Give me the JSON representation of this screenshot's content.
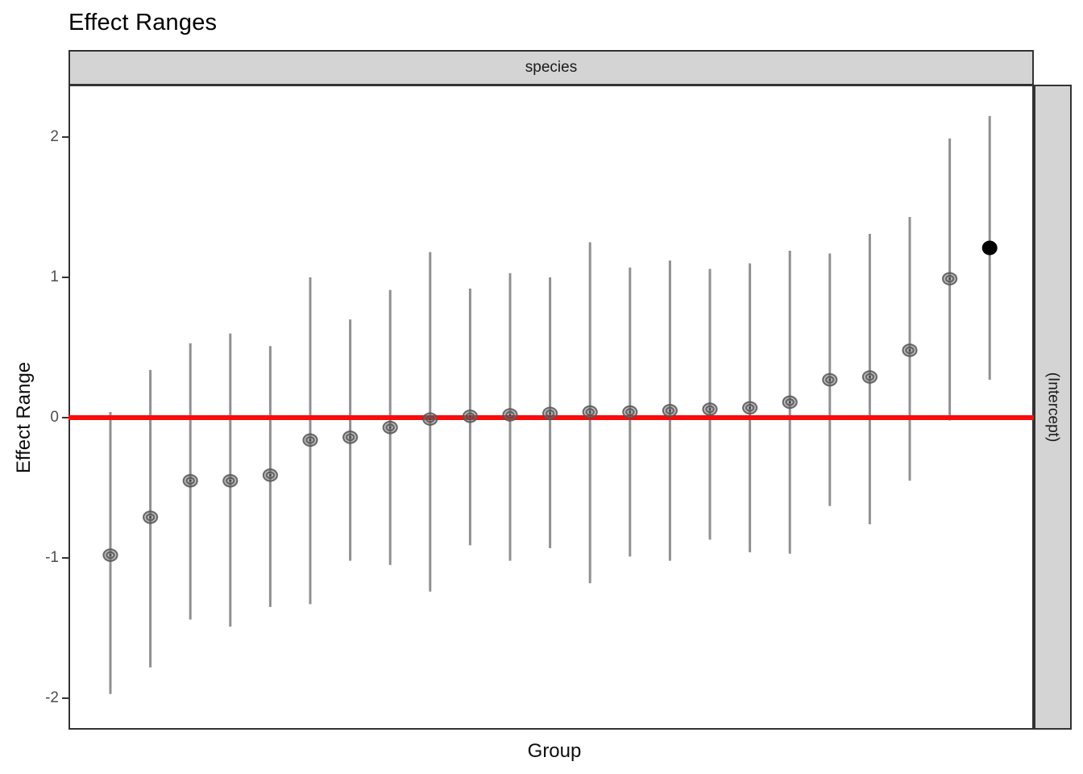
{
  "title": "Effect Ranges",
  "facet": {
    "top_label": "species",
    "right_label": "(Intercept)"
  },
  "axes": {
    "x_label": "Group",
    "y_label": "Effect Range",
    "y_tick_labels": [
      "2",
      "1",
      "0",
      "-1",
      "-2"
    ],
    "y_tick_values": [
      2,
      1,
      0,
      -1,
      -2
    ],
    "x_tick_labels_shown": false
  },
  "colors": {
    "reference_line": "#fb0b0b",
    "interval": "#909090",
    "point_fill": "#8a8a8a",
    "point_ring": "#5a5a5a",
    "point_significant": "#000000",
    "strip_fill": "#d4d4d4",
    "panel_border": "#333333"
  },
  "chart_data": {
    "type": "scatter",
    "subtype": "pointrange",
    "title": "Effect Ranges",
    "xlabel": "Group",
    "ylabel": "Effect Range",
    "facet_top": "species",
    "facet_right": "(Intercept)",
    "ylim": [
      -2.25,
      2.37
    ],
    "y_ticks": [
      2,
      1,
      0,
      -1,
      -2
    ],
    "grid": false,
    "legend": "none",
    "reference_line_y": 0,
    "n_groups": 23,
    "groups": [
      {
        "group": 1,
        "median": -0.98,
        "lower": -1.97,
        "upper": 0.04,
        "significant": false
      },
      {
        "group": 2,
        "median": -0.71,
        "lower": -1.78,
        "upper": 0.34,
        "significant": false
      },
      {
        "group": 3,
        "median": -0.45,
        "lower": -1.44,
        "upper": 0.53,
        "significant": false
      },
      {
        "group": 4,
        "median": -0.45,
        "lower": -1.49,
        "upper": 0.6,
        "significant": false
      },
      {
        "group": 5,
        "median": -0.41,
        "lower": -1.35,
        "upper": 0.51,
        "significant": false
      },
      {
        "group": 6,
        "median": -0.16,
        "lower": -1.33,
        "upper": 1.0,
        "significant": false
      },
      {
        "group": 7,
        "median": -0.14,
        "lower": -1.02,
        "upper": 0.7,
        "significant": false
      },
      {
        "group": 8,
        "median": -0.07,
        "lower": -1.05,
        "upper": 0.91,
        "significant": false
      },
      {
        "group": 9,
        "median": -0.01,
        "lower": -1.24,
        "upper": 1.18,
        "significant": false
      },
      {
        "group": 10,
        "median": 0.01,
        "lower": -0.91,
        "upper": 0.92,
        "significant": false
      },
      {
        "group": 11,
        "median": 0.02,
        "lower": -1.02,
        "upper": 1.03,
        "significant": false
      },
      {
        "group": 12,
        "median": 0.03,
        "lower": -0.93,
        "upper": 1.0,
        "significant": false
      },
      {
        "group": 13,
        "median": 0.04,
        "lower": -1.18,
        "upper": 1.25,
        "significant": false
      },
      {
        "group": 14,
        "median": 0.04,
        "lower": -0.99,
        "upper": 1.07,
        "significant": false
      },
      {
        "group": 15,
        "median": 0.05,
        "lower": -1.02,
        "upper": 1.12,
        "significant": false
      },
      {
        "group": 16,
        "median": 0.06,
        "lower": -0.87,
        "upper": 1.06,
        "significant": false
      },
      {
        "group": 17,
        "median": 0.07,
        "lower": -0.96,
        "upper": 1.1,
        "significant": false
      },
      {
        "group": 18,
        "median": 0.11,
        "lower": -0.97,
        "upper": 1.19,
        "significant": false
      },
      {
        "group": 19,
        "median": 0.27,
        "lower": -0.63,
        "upper": 1.17,
        "significant": false
      },
      {
        "group": 20,
        "median": 0.29,
        "lower": -0.76,
        "upper": 1.31,
        "significant": false
      },
      {
        "group": 21,
        "median": 0.48,
        "lower": -0.45,
        "upper": 1.43,
        "significant": false
      },
      {
        "group": 22,
        "median": 0.99,
        "lower": -0.02,
        "upper": 1.99,
        "significant": false
      },
      {
        "group": 23,
        "median": 1.21,
        "lower": 0.27,
        "upper": 2.15,
        "significant": true
      }
    ]
  }
}
